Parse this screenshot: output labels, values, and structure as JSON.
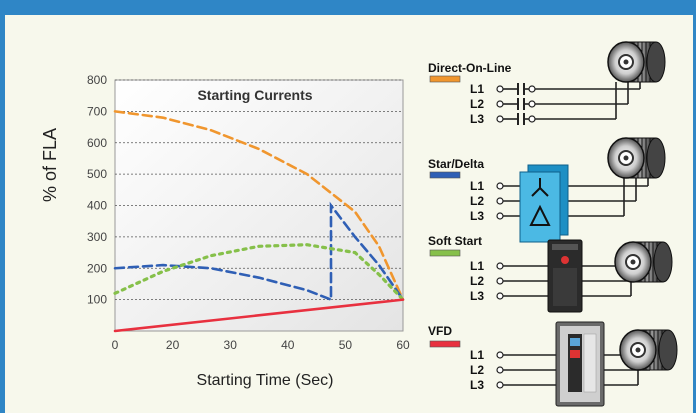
{
  "chart_data": {
    "type": "line",
    "title": "Starting Currents",
    "xlabel": "Starting Time (Sec)",
    "ylabel": "% of FLA",
    "xlim": [
      0,
      60
    ],
    "ylim": [
      0,
      800
    ],
    "x_ticks": [
      "0",
      "20",
      "30",
      "40",
      "50",
      "60"
    ],
    "y_ticks": [
      "100",
      "200",
      "300",
      "400",
      "500",
      "600",
      "700",
      "800"
    ],
    "grid": true,
    "series": [
      {
        "name": "Direct-On-Line",
        "color": "#f0962e",
        "style": "dashed",
        "x": [
          0,
          10,
          20,
          30,
          40,
          50,
          55,
          60
        ],
        "y": [
          700,
          680,
          640,
          580,
          500,
          380,
          270,
          100
        ]
      },
      {
        "name": "Star/Delta",
        "color": "#2f5fb5",
        "style": "dashed",
        "x": [
          0,
          10,
          20,
          30,
          40,
          45,
          45,
          50,
          55,
          60
        ],
        "y": [
          200,
          210,
          200,
          170,
          130,
          100,
          400,
          300,
          210,
          100
        ]
      },
      {
        "name": "Soft Start",
        "color": "#86c04a",
        "style": "dotted",
        "x": [
          0,
          10,
          20,
          30,
          40,
          50,
          55,
          60
        ],
        "y": [
          120,
          190,
          240,
          270,
          275,
          250,
          180,
          100
        ]
      },
      {
        "name": "VFD",
        "color": "#e8303f",
        "style": "solid",
        "x": [
          0,
          60
        ],
        "y": [
          0,
          100
        ]
      }
    ]
  },
  "legend": [
    {
      "label": "Direct-On-Line",
      "color": "#f0962e"
    },
    {
      "label": "Star/Delta",
      "color": "#2f5fb5"
    },
    {
      "label": "Soft Start",
      "color": "#86c04a"
    },
    {
      "label": "VFD",
      "color": "#e8303f"
    }
  ],
  "phases": [
    "L1",
    "L2",
    "L3"
  ]
}
